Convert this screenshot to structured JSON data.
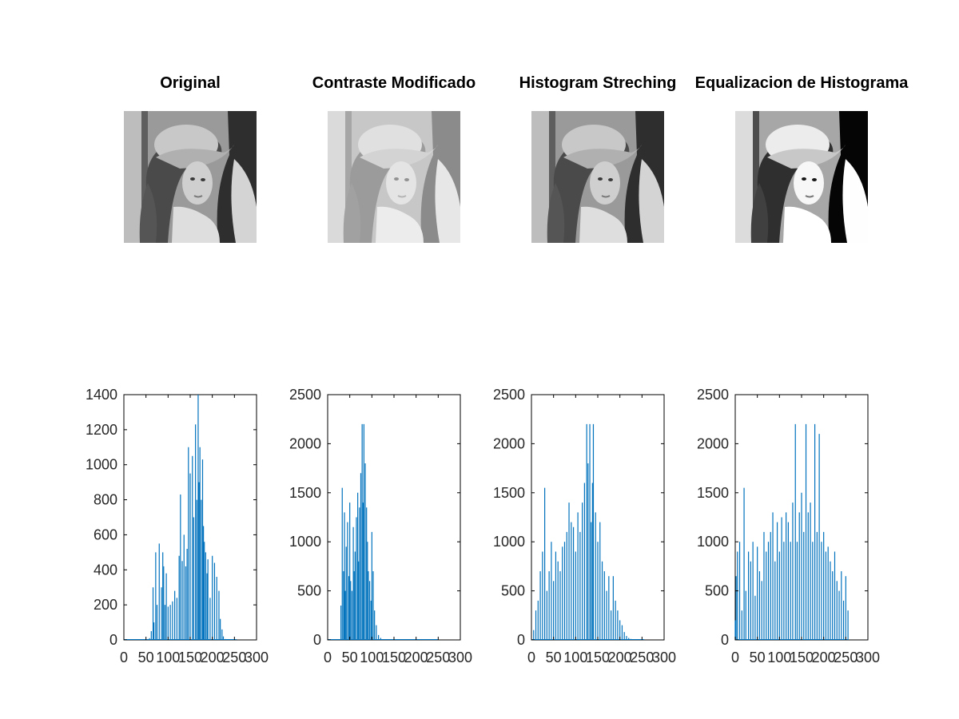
{
  "titles": [
    "Original",
    "Contraste Modificado",
    "Histogram Streching",
    "Equalizacion de Histograma"
  ],
  "images": [
    {
      "name": "original",
      "tone": "normal"
    },
    {
      "name": "contraste-modificado",
      "tone": "dark-low-contrast"
    },
    {
      "name": "histogram-streching",
      "tone": "normal"
    },
    {
      "name": "equalizacion",
      "tone": "high-contrast"
    }
  ],
  "colors": {
    "series": "#0072BD",
    "axis": "#000000",
    "background": "#FFFFFF"
  },
  "chart_data": [
    {
      "type": "bar",
      "title": "",
      "xlim": [
        0,
        300
      ],
      "ylim": [
        0,
        1400
      ],
      "xticks": [
        0,
        50,
        100,
        150,
        200,
        250,
        300
      ],
      "xtick_labels": [
        "0",
        "50",
        "100",
        "150",
        "200",
        "250",
        "300"
      ],
      "yticks": [
        0,
        200,
        400,
        600,
        800,
        1000,
        1200,
        1400
      ],
      "ytick_labels": [
        "0",
        "200",
        "400",
        "600",
        "800",
        "1000",
        "1200",
        "1400"
      ],
      "grid": false,
      "x": [
        0,
        50,
        58,
        62,
        66,
        68,
        72,
        75,
        80,
        85,
        88,
        90,
        93,
        96,
        100,
        105,
        110,
        115,
        120,
        125,
        128,
        132,
        136,
        140,
        143,
        146,
        150,
        155,
        158,
        162,
        165,
        168,
        170,
        172,
        175,
        178,
        180,
        182,
        185,
        188,
        190,
        195,
        200,
        205,
        210,
        215,
        218,
        222,
        225,
        230,
        235,
        240,
        255
      ],
      "values": [
        0,
        0,
        10,
        50,
        300,
        100,
        500,
        200,
        550,
        300,
        500,
        420,
        200,
        380,
        190,
        200,
        220,
        280,
        240,
        480,
        830,
        450,
        600,
        420,
        520,
        1100,
        950,
        1050,
        700,
        1230,
        800,
        1400,
        900,
        1100,
        800,
        1030,
        650,
        560,
        500,
        380,
        460,
        240,
        480,
        440,
        360,
        280,
        120,
        60,
        20,
        5,
        0,
        0,
        0
      ]
    },
    {
      "type": "bar",
      "title": "",
      "xlim": [
        0,
        300
      ],
      "ylim": [
        0,
        2500
      ],
      "xticks": [
        0,
        50,
        100,
        150,
        200,
        250,
        300
      ],
      "xtick_labels": [
        "0",
        "50",
        "100",
        "150",
        "200",
        "250",
        "300"
      ],
      "yticks": [
        0,
        500,
        1000,
        1500,
        2000,
        2500
      ],
      "ytick_labels": [
        "0",
        "500",
        "1000",
        "1500",
        "2000",
        "2500"
      ],
      "grid": false,
      "x": [
        0,
        25,
        30,
        33,
        36,
        38,
        40,
        42,
        45,
        48,
        50,
        52,
        55,
        58,
        60,
        62,
        65,
        68,
        70,
        72,
        75,
        78,
        80,
        82,
        85,
        88,
        90,
        92,
        95,
        98,
        100,
        103,
        106,
        110,
        115,
        120,
        250
      ],
      "values": [
        0,
        0,
        350,
        1550,
        700,
        1300,
        500,
        950,
        1200,
        650,
        1400,
        600,
        500,
        1150,
        700,
        900,
        1250,
        1500,
        800,
        1350,
        1700,
        2200,
        1400,
        2200,
        1800,
        1350,
        1000,
        700,
        600,
        400,
        1100,
        700,
        300,
        150,
        50,
        20,
        0
      ]
    },
    {
      "type": "bar",
      "title": "",
      "xlim": [
        0,
        300
      ],
      "ylim": [
        0,
        2500
      ],
      "xticks": [
        0,
        50,
        100,
        150,
        200,
        250,
        300
      ],
      "xtick_labels": [
        "0",
        "50",
        "100",
        "150",
        "200",
        "250",
        "300"
      ],
      "yticks": [
        0,
        500,
        1000,
        1500,
        2000,
        2500
      ],
      "ytick_labels": [
        "0",
        "500",
        "1000",
        "1500",
        "2000",
        "2500"
      ],
      "grid": false,
      "x": [
        0,
        5,
        10,
        15,
        20,
        25,
        30,
        35,
        40,
        45,
        50,
        55,
        60,
        65,
        70,
        75,
        80,
        85,
        90,
        95,
        100,
        105,
        110,
        115,
        120,
        125,
        128,
        132,
        135,
        138,
        140,
        145,
        150,
        155,
        160,
        165,
        170,
        175,
        180,
        185,
        190,
        195,
        200,
        205,
        210,
        215,
        220,
        225,
        230,
        235,
        240,
        250,
        255
      ],
      "values": [
        0,
        100,
        300,
        400,
        700,
        900,
        1550,
        500,
        700,
        1000,
        600,
        900,
        800,
        700,
        950,
        1000,
        1100,
        1400,
        1200,
        1150,
        900,
        1300,
        1100,
        1400,
        1600,
        2200,
        1800,
        2200,
        1200,
        1600,
        2200,
        1300,
        1000,
        1200,
        800,
        700,
        500,
        650,
        300,
        650,
        400,
        300,
        200,
        150,
        80,
        40,
        20,
        10,
        5,
        0,
        0,
        0,
        0
      ]
    },
    {
      "type": "bar",
      "title": "",
      "xlim": [
        0,
        300
      ],
      "ylim": [
        0,
        2500
      ],
      "xticks": [
        0,
        50,
        100,
        150,
        200,
        250,
        300
      ],
      "xtick_labels": [
        "0",
        "50",
        "100",
        "150",
        "200",
        "250",
        "300"
      ],
      "yticks": [
        0,
        500,
        1000,
        1500,
        2000,
        2500
      ],
      "ytick_labels": [
        "0",
        "500",
        "1000",
        "1500",
        "2000",
        "2500"
      ],
      "grid": false,
      "x": [
        0,
        2,
        5,
        10,
        15,
        20,
        24,
        30,
        35,
        40,
        45,
        50,
        55,
        60,
        65,
        70,
        75,
        80,
        85,
        90,
        95,
        100,
        105,
        110,
        115,
        120,
        125,
        130,
        136,
        140,
        145,
        150,
        155,
        160,
        165,
        170,
        175,
        180,
        185,
        190,
        195,
        200,
        205,
        210,
        215,
        220,
        225,
        230,
        235,
        240,
        245,
        250,
        255
      ],
      "values": [
        200,
        650,
        900,
        1000,
        300,
        1550,
        500,
        900,
        800,
        1000,
        450,
        950,
        700,
        600,
        1100,
        900,
        1000,
        1100,
        1300,
        800,
        1200,
        900,
        1250,
        1000,
        1300,
        1200,
        1000,
        1400,
        2200,
        1000,
        1300,
        1500,
        1100,
        2200,
        1300,
        1400,
        1000,
        2200,
        1100,
        2100,
        1000,
        1100,
        900,
        950,
        800,
        700,
        900,
        600,
        500,
        700,
        400,
        650,
        300
      ]
    }
  ]
}
